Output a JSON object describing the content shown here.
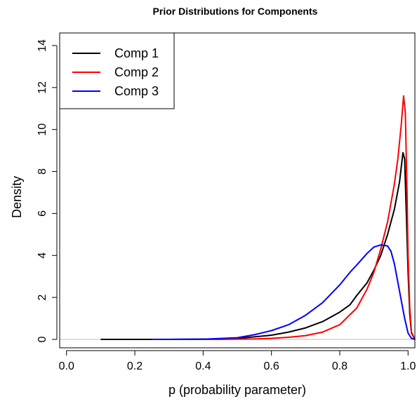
{
  "chart_data": {
    "type": "line",
    "title": "Prior Distributions for Components",
    "xlabel": "p (probability parameter)",
    "ylabel": "Density",
    "xlim": [
      -0.02,
      1.02
    ],
    "ylim": [
      -0.4,
      14.6
    ],
    "xticks": [
      0.0,
      0.2,
      0.4,
      0.6,
      0.8,
      1.0
    ],
    "xtick_labels": [
      "0.0",
      "0.2",
      "0.4",
      "0.6",
      "0.8",
      "1.0"
    ],
    "yticks": [
      0,
      2,
      4,
      6,
      8,
      10,
      12,
      14
    ],
    "ytick_labels": [
      "0",
      "2",
      "4",
      "6",
      "8",
      "10",
      "12",
      "14"
    ],
    "grid": false,
    "zero_line": true,
    "legend_position": "top-left",
    "series": [
      {
        "name": "Comp 1",
        "color": "#000000",
        "points": [
          [
            0.1,
            0
          ],
          [
            0.3,
            0
          ],
          [
            0.45,
            0.02
          ],
          [
            0.5,
            0.05
          ],
          [
            0.55,
            0.12
          ],
          [
            0.6,
            0.2
          ],
          [
            0.65,
            0.35
          ],
          [
            0.7,
            0.55
          ],
          [
            0.75,
            0.85
          ],
          [
            0.8,
            1.3
          ],
          [
            0.83,
            1.65
          ],
          [
            0.85,
            2.1
          ],
          [
            0.88,
            2.7
          ],
          [
            0.9,
            3.3
          ],
          [
            0.92,
            4.0
          ],
          [
            0.94,
            5.0
          ],
          [
            0.96,
            6.2
          ],
          [
            0.975,
            7.5
          ],
          [
            0.985,
            8.9
          ],
          [
            0.99,
            8.6
          ],
          [
            0.995,
            6.0
          ],
          [
            1.0,
            3.2
          ],
          [
            1.005,
            1.2
          ],
          [
            1.01,
            0.3
          ],
          [
            1.02,
            0
          ]
        ]
      },
      {
        "name": "Comp 2",
        "color": "#ff0000",
        "points": [
          [
            0.25,
            0
          ],
          [
            0.45,
            0
          ],
          [
            0.55,
            0.02
          ],
          [
            0.6,
            0.05
          ],
          [
            0.65,
            0.1
          ],
          [
            0.7,
            0.18
          ],
          [
            0.75,
            0.35
          ],
          [
            0.8,
            0.7
          ],
          [
            0.85,
            1.5
          ],
          [
            0.88,
            2.4
          ],
          [
            0.9,
            3.2
          ],
          [
            0.92,
            4.3
          ],
          [
            0.94,
            5.6
          ],
          [
            0.96,
            7.4
          ],
          [
            0.97,
            8.6
          ],
          [
            0.98,
            10.2
          ],
          [
            0.987,
            11.6
          ],
          [
            0.992,
            10.8
          ],
          [
            0.997,
            7.0
          ],
          [
            1.0,
            4.0
          ],
          [
            1.005,
            1.5
          ],
          [
            1.01,
            0.35
          ],
          [
            1.02,
            0
          ]
        ]
      },
      {
        "name": "Comp 3",
        "color": "#0000ff",
        "points": [
          [
            0.25,
            0
          ],
          [
            0.4,
            0.01
          ],
          [
            0.5,
            0.08
          ],
          [
            0.55,
            0.22
          ],
          [
            0.6,
            0.42
          ],
          [
            0.65,
            0.7
          ],
          [
            0.7,
            1.15
          ],
          [
            0.75,
            1.75
          ],
          [
            0.8,
            2.6
          ],
          [
            0.83,
            3.2
          ],
          [
            0.85,
            3.55
          ],
          [
            0.88,
            4.1
          ],
          [
            0.9,
            4.4
          ],
          [
            0.92,
            4.5
          ],
          [
            0.94,
            4.45
          ],
          [
            0.95,
            4.2
          ],
          [
            0.96,
            3.6
          ],
          [
            0.975,
            2.3
          ],
          [
            0.99,
            1.0
          ],
          [
            1.0,
            0.3
          ],
          [
            1.01,
            0.05
          ],
          [
            1.02,
            0
          ]
        ]
      }
    ]
  }
}
